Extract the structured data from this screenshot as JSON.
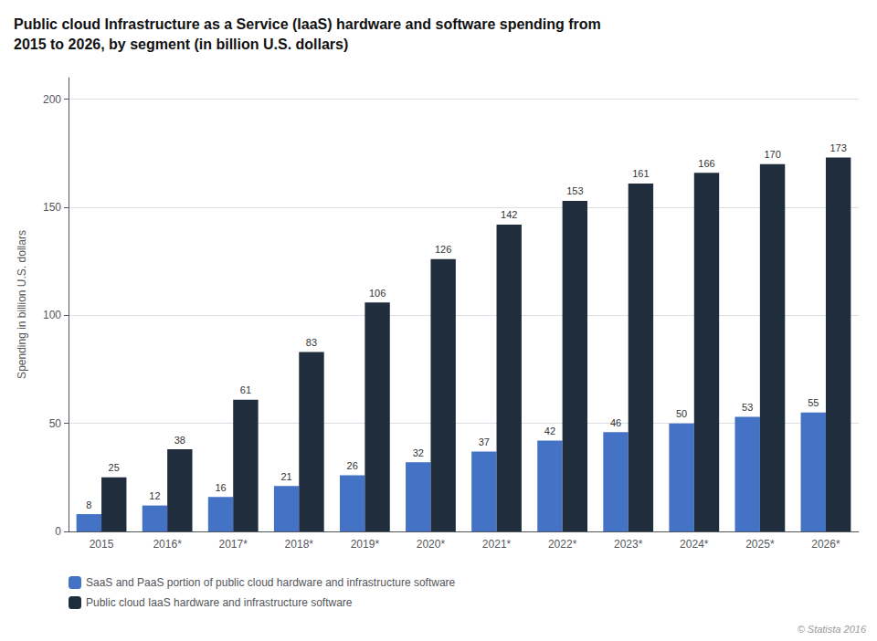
{
  "chart_data": {
    "type": "bar",
    "title": "Public cloud Infrastructure as a Service (IaaS) hardware and software spending from\n2015 to 2026, by segment (in billion U.S. dollars)",
    "categories": [
      "2015",
      "2016*",
      "2017*",
      "2018*",
      "2019*",
      "2020*",
      "2021*",
      "2022*",
      "2023*",
      "2024*",
      "2025*",
      "2026*"
    ],
    "series": [
      {
        "name": "SaaS and PaaS portion of public cloud hardware and infrastructure software",
        "color": "#4472C4",
        "values": [
          8,
          12,
          16,
          21,
          26,
          32,
          37,
          42,
          46,
          50,
          53,
          55
        ]
      },
      {
        "name": "Public cloud IaaS hardware and infrastructure software",
        "color": "#1F2D3D",
        "values": [
          25,
          38,
          61,
          83,
          106,
          126,
          142,
          153,
          161,
          166,
          170,
          173
        ]
      }
    ],
    "ylabel": "Spending in billion U.S. dollars",
    "ylim": [
      0,
      210
    ],
    "yticks": [
      0,
      50,
      100,
      150,
      200
    ],
    "grid": true,
    "legend": "bottom left",
    "data_labels": true,
    "annotations": [
      "© Statista 2016"
    ]
  }
}
